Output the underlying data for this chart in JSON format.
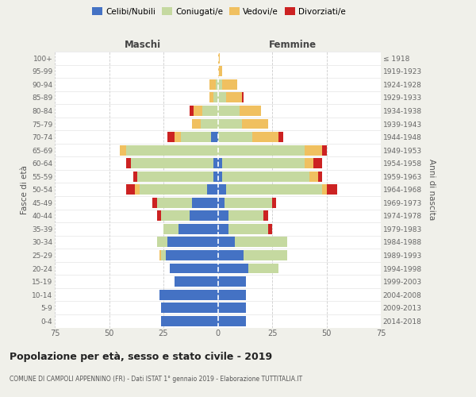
{
  "age_groups": [
    "0-4",
    "5-9",
    "10-14",
    "15-19",
    "20-24",
    "25-29",
    "30-34",
    "35-39",
    "40-44",
    "45-49",
    "50-54",
    "55-59",
    "60-64",
    "65-69",
    "70-74",
    "75-79",
    "80-84",
    "85-89",
    "90-94",
    "95-99",
    "100+"
  ],
  "birth_years": [
    "2014-2018",
    "2009-2013",
    "2004-2008",
    "1999-2003",
    "1994-1998",
    "1989-1993",
    "1984-1988",
    "1979-1983",
    "1974-1978",
    "1969-1973",
    "1964-1968",
    "1959-1963",
    "1954-1958",
    "1949-1953",
    "1944-1948",
    "1939-1943",
    "1934-1938",
    "1929-1933",
    "1924-1928",
    "1919-1923",
    "≤ 1918"
  ],
  "maschi": {
    "celibi": [
      26,
      26,
      27,
      20,
      22,
      24,
      23,
      18,
      13,
      12,
      5,
      2,
      2,
      0,
      3,
      0,
      0,
      0,
      0,
      0,
      0
    ],
    "coniugati": [
      0,
      0,
      0,
      0,
      0,
      2,
      5,
      7,
      13,
      16,
      31,
      35,
      38,
      42,
      14,
      8,
      7,
      2,
      1,
      0,
      0
    ],
    "vedovi": [
      0,
      0,
      0,
      0,
      0,
      1,
      0,
      0,
      0,
      0,
      2,
      0,
      0,
      3,
      3,
      4,
      4,
      2,
      3,
      0,
      0
    ],
    "divorziati": [
      0,
      0,
      0,
      0,
      0,
      0,
      0,
      0,
      2,
      2,
      4,
      2,
      2,
      0,
      3,
      0,
      2,
      0,
      0,
      0,
      0
    ]
  },
  "femmine": {
    "nubili": [
      13,
      13,
      13,
      13,
      14,
      12,
      8,
      5,
      5,
      3,
      4,
      2,
      2,
      0,
      0,
      0,
      0,
      0,
      0,
      0,
      0
    ],
    "coniugate": [
      0,
      0,
      0,
      0,
      14,
      20,
      24,
      18,
      16,
      22,
      44,
      40,
      38,
      40,
      16,
      11,
      10,
      4,
      2,
      0,
      0
    ],
    "vedove": [
      0,
      0,
      0,
      0,
      0,
      0,
      0,
      0,
      0,
      0,
      2,
      4,
      4,
      8,
      12,
      12,
      10,
      7,
      7,
      2,
      1
    ],
    "divorziate": [
      0,
      0,
      0,
      0,
      0,
      0,
      0,
      2,
      2,
      2,
      5,
      2,
      4,
      2,
      2,
      0,
      0,
      1,
      0,
      0,
      0
    ]
  },
  "colors": {
    "celibi": "#4472c4",
    "coniugati": "#c5d9a0",
    "vedovi": "#f0c060",
    "divorziati": "#cc2222"
  },
  "xlim": 75,
  "title": "Popolazione per età, sesso e stato civile - 2019",
  "subtitle": "COMUNE DI CAMPOLI APPENNINO (FR) - Dati ISTAT 1° gennaio 2019 - Elaborazione TUTTITALIA.IT",
  "ylabel_left": "Fasce di età",
  "ylabel_right": "Anni di nascita",
  "xlabel_maschi": "Maschi",
  "xlabel_femmine": "Femmine",
  "bg_color": "#f0f0ea",
  "plot_bg": "#ffffff"
}
